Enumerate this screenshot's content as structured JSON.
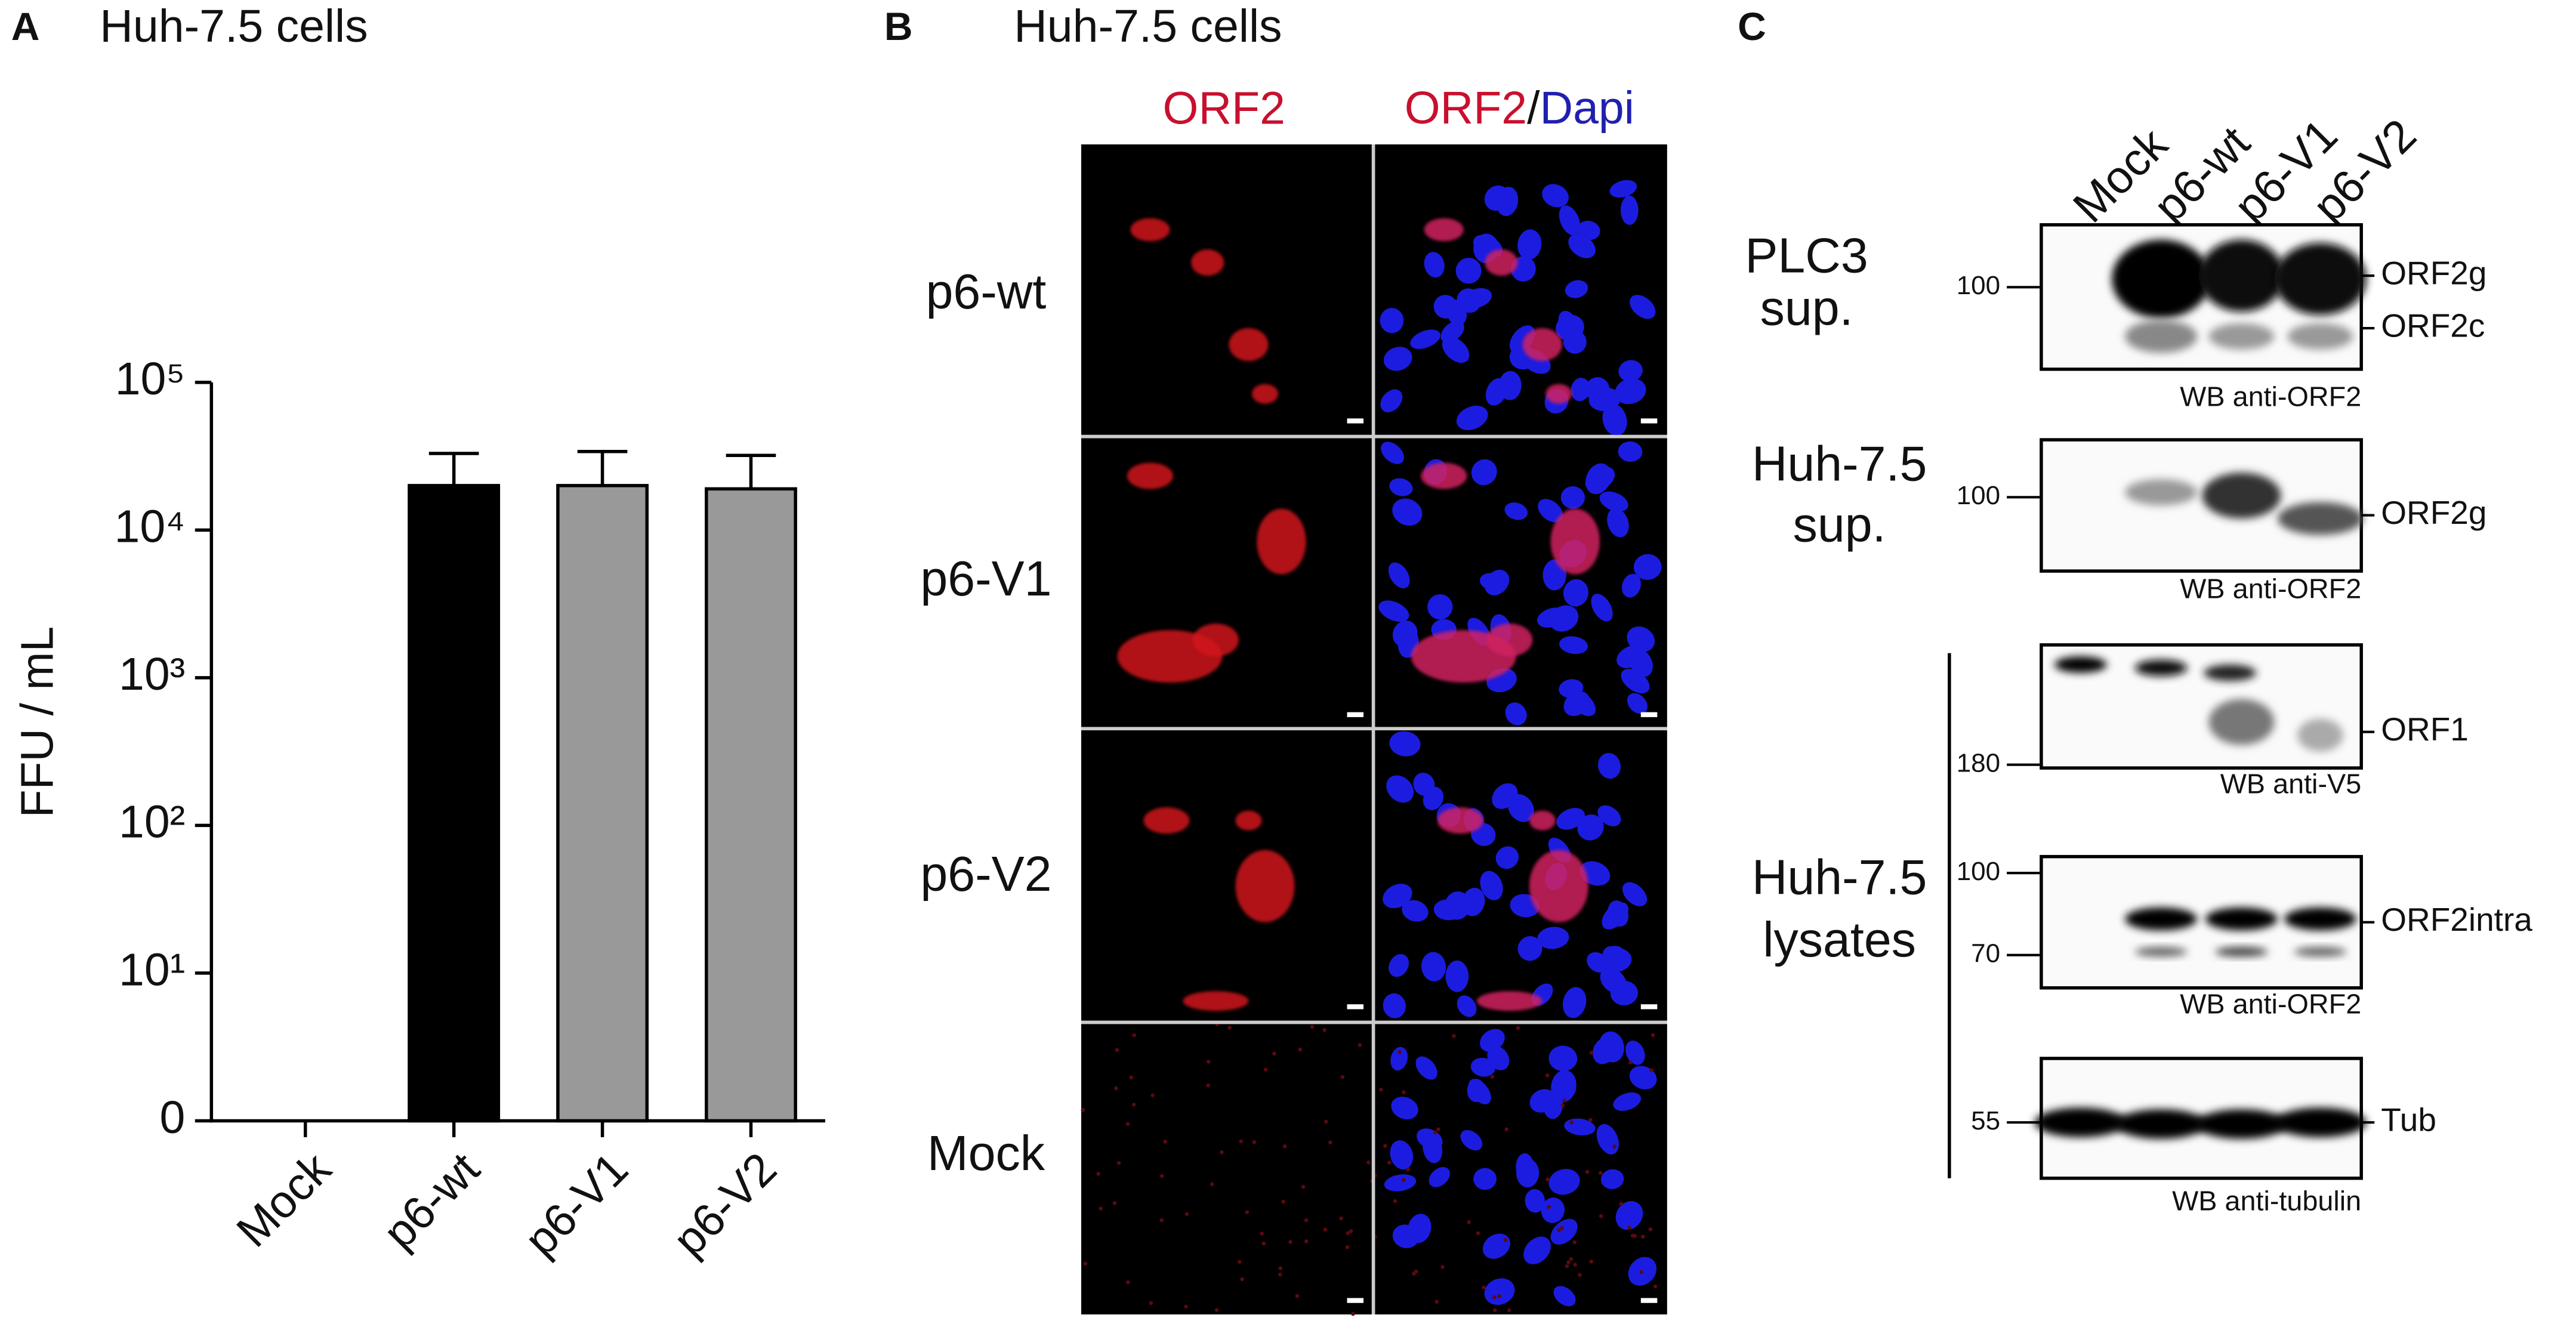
{
  "chart_data": {
    "type": "bar",
    "panel": "A",
    "title": "Huh-7.5 cells",
    "y_label": "FFU / mL",
    "categories": [
      "Mock",
      "p6-wt",
      "p6-V1",
      "p6-V2"
    ],
    "values": [
      0,
      20000,
      20000,
      19000
    ],
    "errors": [
      0,
      13000,
      14000,
      13000
    ],
    "colors": [
      "#000000",
      "#000000",
      "#999999",
      "#999999"
    ],
    "log_scale": true,
    "ylim": [
      1,
      100000
    ],
    "yticks": [
      {
        "value": 1,
        "label": "0"
      },
      {
        "value": 10,
        "label": "10¹"
      },
      {
        "value": 100,
        "label": "10²"
      },
      {
        "value": 1000,
        "label": "10³"
      },
      {
        "value": 10000,
        "label": "10⁴"
      },
      {
        "value": 100000,
        "label": "10⁵"
      }
    ]
  },
  "panel_b": {
    "letter": "B",
    "title": "Huh-7.5 cells",
    "column_1": "ORF2",
    "column_2": [
      "ORF2",
      "/",
      "Dapi"
    ],
    "rows": [
      "p6-wt",
      "p6-V1",
      "p6-V2",
      "Mock"
    ]
  },
  "panel_c": {
    "letter": "C",
    "lanes": [
      "Mock",
      "p6-wt",
      "p6-V1",
      "p6-V2"
    ],
    "groups": [
      [
        "PLC3",
        "sup."
      ],
      [
        "Huh-7.5",
        "sup."
      ],
      [
        "Huh-7.5",
        "lysates"
      ]
    ],
    "blots": [
      {
        "markers": [
          "100"
        ],
        "bands": [
          "ORF2g",
          "ORF2c"
        ],
        "antibody": "WB anti-ORF2"
      },
      {
        "markers": [
          "100"
        ],
        "bands": [
          "ORF2g"
        ],
        "antibody": "WB anti-ORF2"
      },
      {
        "markers": [
          "180"
        ],
        "bands": [
          "ORF1"
        ],
        "antibody": "WB anti-V5"
      },
      {
        "markers": [
          "100",
          "70"
        ],
        "bands": [
          "ORF2intra"
        ],
        "antibody": "WB anti-ORF2"
      },
      {
        "markers": [
          "55"
        ],
        "bands": [
          "Tub"
        ],
        "antibody": "WB anti-tubulin"
      }
    ]
  }
}
